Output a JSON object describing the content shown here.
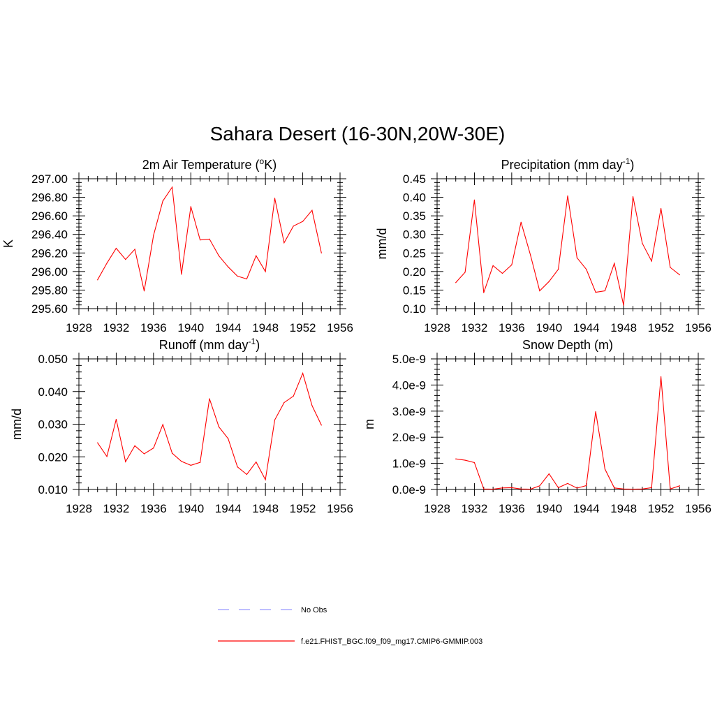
{
  "title": "Sahara Desert (16-30N,20W-30E)",
  "legend": [
    {
      "label": "No Obs",
      "color": "#9999ff",
      "dash": true
    },
    {
      "label": "f.e21.FHIST_BGC.f09_f09_mg17.CMIP6-GMMIP.003",
      "color": "#ff0000",
      "dash": false
    }
  ],
  "chart_data": [
    {
      "type": "line",
      "title": "2m Air Temperature",
      "title_unit": "(oK)",
      "ylabel": "K",
      "xlim": [
        1928,
        1956
      ],
      "x_ticks": [
        "1928",
        "1932",
        "1936",
        "1940",
        "1944",
        "1948",
        "1952",
        "1956"
      ],
      "ylim": [
        295.6,
        297.0
      ],
      "y_ticks": [
        "295.60",
        "295.80",
        "296.00",
        "296.20",
        "296.40",
        "296.60",
        "296.80",
        "297.00"
      ],
      "color": "#ff0000",
      "x": [
        1930,
        1931,
        1932,
        1933,
        1934,
        1935,
        1936,
        1937,
        1938,
        1939,
        1940,
        1941,
        1942,
        1943,
        1944,
        1945,
        1946,
        1947,
        1948,
        1949,
        1950,
        1951,
        1952,
        1953,
        1954
      ],
      "values": [
        295.91,
        296.09,
        296.25,
        296.13,
        296.24,
        295.79,
        296.39,
        296.76,
        296.91,
        295.97,
        296.7,
        296.34,
        296.35,
        296.17,
        296.05,
        295.95,
        295.92,
        296.17,
        296.0,
        296.79,
        296.31,
        296.49,
        296.54,
        296.66,
        296.2
      ]
    },
    {
      "type": "line",
      "title": "Precipitation",
      "title_unit": "(mm day-1)",
      "ylabel": "mm/d",
      "xlim": [
        1928,
        1956
      ],
      "x_ticks": [
        "1928",
        "1932",
        "1936",
        "1940",
        "1944",
        "1948",
        "1952",
        "1956"
      ],
      "ylim": [
        0.1,
        0.45
      ],
      "y_ticks": [
        "0.10",
        "0.15",
        "0.20",
        "0.25",
        "0.30",
        "0.35",
        "0.40",
        "0.45"
      ],
      "color": "#ff0000",
      "x": [
        1930,
        1931,
        1932,
        1933,
        1934,
        1935,
        1936,
        1937,
        1938,
        1939,
        1940,
        1941,
        1942,
        1943,
        1944,
        1945,
        1946,
        1947,
        1948,
        1949,
        1950,
        1951,
        1952,
        1953,
        1954
      ],
      "values": [
        0.17,
        0.198,
        0.393,
        0.143,
        0.216,
        0.195,
        0.218,
        0.333,
        0.245,
        0.148,
        0.173,
        0.206,
        0.404,
        0.237,
        0.206,
        0.144,
        0.148,
        0.222,
        0.109,
        0.402,
        0.276,
        0.228,
        0.37,
        0.211,
        0.191
      ]
    },
    {
      "type": "line",
      "title": "Runoff",
      "title_unit": "(mm day-1)",
      "ylabel": "mm/d",
      "xlim": [
        1928,
        1956
      ],
      "x_ticks": [
        "1928",
        "1932",
        "1936",
        "1940",
        "1944",
        "1948",
        "1952",
        "1956"
      ],
      "ylim": [
        0.01,
        0.05
      ],
      "y_ticks": [
        "0.010",
        "0.020",
        "0.030",
        "0.040",
        "0.050"
      ],
      "color": "#ff0000",
      "x": [
        1930,
        1931,
        1932,
        1933,
        1934,
        1935,
        1936,
        1937,
        1938,
        1939,
        1940,
        1941,
        1942,
        1943,
        1944,
        1945,
        1946,
        1947,
        1948,
        1949,
        1950,
        1951,
        1952,
        1953,
        1954
      ],
      "values": [
        0.0243,
        0.0201,
        0.0315,
        0.0185,
        0.0234,
        0.0209,
        0.0227,
        0.0299,
        0.0211,
        0.0186,
        0.0174,
        0.0183,
        0.0378,
        0.0292,
        0.0256,
        0.0169,
        0.0146,
        0.0184,
        0.013,
        0.0313,
        0.0366,
        0.0386,
        0.0456,
        0.0357,
        0.0297
      ]
    },
    {
      "type": "line",
      "title": "Snow Depth",
      "title_unit": "(m)",
      "ylabel": "m",
      "xlim": [
        1928,
        1956
      ],
      "x_ticks": [
        "1928",
        "1932",
        "1936",
        "1940",
        "1944",
        "1948",
        "1952",
        "1956"
      ],
      "ylim": [
        0.0,
        5.0
      ],
      "y_ticks": [
        "0.0e-9",
        "1.0e-9",
        "2.0e-9",
        "3.0e-9",
        "4.0e-9",
        "5.0e-9"
      ],
      "y_unit_scale": "e-9",
      "color": "#ff0000",
      "x": [
        1930,
        1931,
        1932,
        1933,
        1934,
        1935,
        1936,
        1937,
        1938,
        1939,
        1940,
        1941,
        1942,
        1943,
        1944,
        1945,
        1946,
        1947,
        1948,
        1949,
        1950,
        1951,
        1952,
        1953,
        1954
      ],
      "values": [
        1.17,
        1.12,
        1.03,
        0.02,
        0.01,
        0.06,
        0.07,
        0.02,
        0.01,
        0.14,
        0.6,
        0.07,
        0.23,
        0.05,
        0.15,
        2.98,
        0.78,
        0.06,
        0.02,
        0.01,
        0.02,
        0.07,
        4.32,
        0.02,
        0.14
      ]
    }
  ]
}
